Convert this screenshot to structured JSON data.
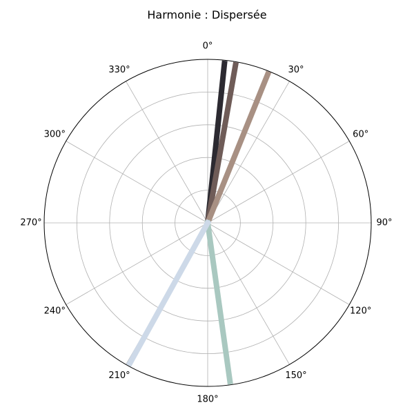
{
  "chart_data": {
    "type": "polar-lines",
    "title": "Harmonie : Dispersée",
    "angle_ticks": [
      "0°",
      "30°",
      "60°",
      "90°",
      "120°",
      "150°",
      "180°",
      "210°",
      "240°",
      "270°",
      "300°",
      "330°"
    ],
    "angle_direction": "clockwise",
    "zero_location": "top",
    "radial_rings": 5,
    "grid": true,
    "radius_max": 1.0,
    "lines": [
      {
        "angle_deg": 6,
        "radius": 0.98,
        "color": "#2c2a31"
      },
      {
        "angle_deg": 10,
        "radius": 0.98,
        "color": "#6f5c58"
      },
      {
        "angle_deg": 22,
        "radius": 0.98,
        "color": "#a89083"
      },
      {
        "angle_deg": 172,
        "radius": 0.98,
        "color": "#a9c8c0"
      },
      {
        "angle_deg": 209,
        "radius": 0.98,
        "color": "#cdd9e8"
      }
    ]
  }
}
